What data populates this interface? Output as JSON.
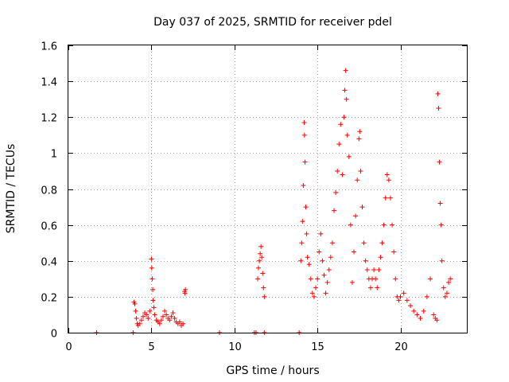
{
  "chart_data": {
    "type": "scatter",
    "title": "Day 037 of 2025, SRMTID for receiver pdel",
    "xlabel": "GPS time / hours",
    "ylabel": "SRMTID / TECUs",
    "xlim": [
      0,
      24
    ],
    "ylim": [
      0,
      1.6
    ],
    "xticks": [
      0,
      5,
      10,
      15,
      20
    ],
    "xtick_labels": [
      "0",
      "5",
      "10",
      "15",
      "20"
    ],
    "yticks": [
      0,
      0.2,
      0.4,
      0.6,
      0.8,
      1,
      1.2,
      1.4,
      1.6
    ],
    "ytick_labels": [
      "0",
      "0.2",
      "0.4",
      "0.6",
      "0.8",
      "1",
      "1.2",
      "1.4",
      "1.6"
    ],
    "grid": true,
    "marker": "+",
    "color": "#ff0000",
    "series": [
      {
        "name": "SRMTID",
        "points": [
          [
            1.7,
            0.0
          ],
          [
            3.9,
            0.0
          ],
          [
            9.1,
            0.0
          ],
          [
            11.2,
            0.0
          ],
          [
            11.3,
            0.0
          ],
          [
            11.8,
            0.0
          ],
          [
            13.9,
            0.0
          ],
          [
            3.95,
            0.17
          ],
          [
            4.0,
            0.16
          ],
          [
            4.05,
            0.12
          ],
          [
            4.1,
            0.08
          ],
          [
            4.15,
            0.05
          ],
          [
            4.2,
            0.04
          ],
          [
            4.3,
            0.05
          ],
          [
            4.4,
            0.07
          ],
          [
            4.5,
            0.09
          ],
          [
            4.6,
            0.11
          ],
          [
            4.7,
            0.1
          ],
          [
            4.8,
            0.08
          ],
          [
            4.9,
            0.12
          ],
          [
            5.0,
            0.41
          ],
          [
            5.02,
            0.36
          ],
          [
            5.05,
            0.3
          ],
          [
            5.08,
            0.24
          ],
          [
            5.1,
            0.18
          ],
          [
            5.15,
            0.14
          ],
          [
            5.2,
            0.1
          ],
          [
            5.3,
            0.07
          ],
          [
            5.4,
            0.06
          ],
          [
            5.5,
            0.05
          ],
          [
            5.6,
            0.07
          ],
          [
            5.7,
            0.09
          ],
          [
            5.8,
            0.12
          ],
          [
            5.9,
            0.1
          ],
          [
            6.0,
            0.08
          ],
          [
            6.1,
            0.07
          ],
          [
            6.2,
            0.09
          ],
          [
            6.3,
            0.11
          ],
          [
            6.4,
            0.08
          ],
          [
            6.5,
            0.06
          ],
          [
            6.6,
            0.05
          ],
          [
            6.7,
            0.06
          ],
          [
            6.8,
            0.04
          ],
          [
            6.9,
            0.05
          ],
          [
            7.0,
            0.23
          ],
          [
            7.05,
            0.24
          ],
          [
            7.02,
            0.22
          ],
          [
            11.4,
            0.3
          ],
          [
            11.45,
            0.36
          ],
          [
            11.5,
            0.4
          ],
          [
            11.55,
            0.44
          ],
          [
            11.6,
            0.48
          ],
          [
            11.65,
            0.42
          ],
          [
            11.7,
            0.33
          ],
          [
            11.75,
            0.25
          ],
          [
            11.8,
            0.2
          ],
          [
            14.0,
            0.4
          ],
          [
            14.05,
            0.5
          ],
          [
            14.1,
            0.62
          ],
          [
            14.15,
            0.82
          ],
          [
            14.2,
            1.17
          ],
          [
            14.22,
            1.1
          ],
          [
            14.25,
            0.95
          ],
          [
            14.3,
            0.7
          ],
          [
            14.35,
            0.55
          ],
          [
            14.4,
            0.42
          ],
          [
            14.5,
            0.38
          ],
          [
            14.6,
            0.3
          ],
          [
            14.7,
            0.22
          ],
          [
            14.8,
            0.2
          ],
          [
            14.9,
            0.25
          ],
          [
            15.0,
            0.3
          ],
          [
            15.1,
            0.45
          ],
          [
            15.2,
            0.55
          ],
          [
            15.3,
            0.4
          ],
          [
            15.4,
            0.32
          ],
          [
            15.5,
            0.22
          ],
          [
            15.6,
            0.28
          ],
          [
            15.7,
            0.35
          ],
          [
            15.8,
            0.42
          ],
          [
            15.9,
            0.5
          ],
          [
            16.0,
            0.68
          ],
          [
            16.1,
            0.78
          ],
          [
            16.2,
            0.9
          ],
          [
            16.3,
            1.05
          ],
          [
            16.4,
            1.16
          ],
          [
            16.5,
            0.88
          ],
          [
            16.6,
            1.2
          ],
          [
            16.65,
            1.35
          ],
          [
            16.7,
            1.46
          ],
          [
            16.75,
            1.3
          ],
          [
            16.8,
            1.1
          ],
          [
            16.9,
            0.98
          ],
          [
            17.0,
            0.6
          ],
          [
            17.1,
            0.28
          ],
          [
            17.2,
            0.45
          ],
          [
            17.3,
            0.65
          ],
          [
            17.4,
            0.85
          ],
          [
            17.5,
            1.08
          ],
          [
            17.55,
            1.12
          ],
          [
            17.6,
            0.9
          ],
          [
            17.7,
            0.7
          ],
          [
            17.8,
            0.5
          ],
          [
            17.9,
            0.4
          ],
          [
            18.0,
            0.35
          ],
          [
            18.1,
            0.3
          ],
          [
            18.2,
            0.25
          ],
          [
            18.3,
            0.3
          ],
          [
            18.4,
            0.35
          ],
          [
            18.5,
            0.3
          ],
          [
            18.6,
            0.25
          ],
          [
            18.7,
            0.35
          ],
          [
            18.8,
            0.42
          ],
          [
            18.9,
            0.5
          ],
          [
            19.0,
            0.6
          ],
          [
            19.1,
            0.75
          ],
          [
            19.2,
            0.88
          ],
          [
            19.3,
            0.85
          ],
          [
            19.4,
            0.75
          ],
          [
            19.5,
            0.6
          ],
          [
            19.6,
            0.45
          ],
          [
            19.7,
            0.3
          ],
          [
            19.8,
            0.2
          ],
          [
            19.9,
            0.18
          ],
          [
            20.0,
            0.2
          ],
          [
            20.2,
            0.22
          ],
          [
            20.4,
            0.18
          ],
          [
            20.6,
            0.15
          ],
          [
            20.8,
            0.12
          ],
          [
            21.0,
            0.1
          ],
          [
            21.2,
            0.08
          ],
          [
            21.4,
            0.12
          ],
          [
            21.6,
            0.2
          ],
          [
            21.8,
            0.3
          ],
          [
            22.0,
            0.1
          ],
          [
            22.1,
            0.08
          ],
          [
            22.2,
            0.07
          ],
          [
            22.25,
            1.33
          ],
          [
            22.3,
            1.25
          ],
          [
            22.35,
            0.95
          ],
          [
            22.4,
            0.72
          ],
          [
            22.45,
            0.6
          ],
          [
            22.5,
            0.4
          ],
          [
            22.6,
            0.25
          ],
          [
            22.7,
            0.2
          ],
          [
            22.8,
            0.22
          ],
          [
            22.9,
            0.28
          ],
          [
            23.0,
            0.3
          ]
        ]
      }
    ]
  }
}
